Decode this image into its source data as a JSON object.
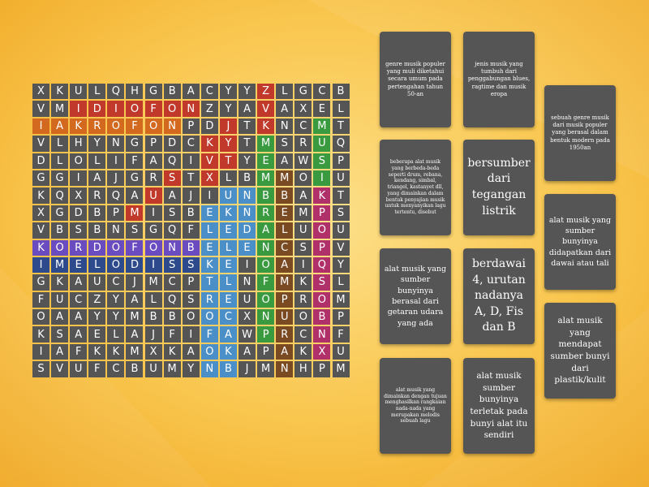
{
  "grid": {
    "rows": [
      "XKULQHGBACYYZLGCB",
      "VMIDIOFONZYAVAXEL",
      "IAKROFONPDJTKNCMT",
      "VLHYNGPDCKYTMSRUQ",
      "DLOLIFAQIVTYEAWSP",
      "GGIAJGRSTXLBMMOIU",
      "KQXRQAUAJIUNBBAKT",
      "XGDBPMISBEKNREMPS",
      "VBSBNSGQFLEDALUOU",
      "KORDOFONBELENCSPV",
      "IMELODISSKEIOAIQY",
      "GKAUCJMCPTLNFMKSL",
      "FUCZYALQSREUOPROM",
      "OAAYYMBBOOCXNUOBP",
      "KSAELAJFIFAWPRCNF",
      "IAFKKMXKAOKAPAKXU",
      "SVUFCBUMYNBJMNHPM"
    ],
    "found_colors": {
      "red": "#c0392b",
      "orange": "#d2691e",
      "purple": "#6a4bc0",
      "navy": "#2c4a8c",
      "lightblue": "#4b8fc8",
      "green": "#3a9a3f",
      "brown": "#7a4a22",
      "magenta": "#b0306a"
    }
  },
  "clues": [
    "genre musik populer yang muli diketahui secara umum pada pertengahan tahun 50-an",
    "jenis musik yang tumbuh dari penggabungan blues, ragtime dan musik eropa",
    "sebuah genre musik dari musik populer yang berasal dalam bentuk modern pada 1950an",
    "beberapa alat musik yang berbeda-beda seperti drum, rebana, kendang, simbal, triangel, kastanyet dll, yang dimainkan dalam bentuk penyajian musik untuk menyanyikan lagu tertentu, disebut",
    "bersumber dari tegangan listrik",
    "alat musik yang sumber bunyinya didapatkan dari dawai atau tali",
    "alat musik yang sumber bunyinya berasal dari getaran udara yang ada",
    "berdawai 4, urutan nadanya A, D, Fis dan B",
    "alat musik yang mendapat sumber bunyi dari plastik/kulit",
    "alat musik yang dimainkan dengan tujuan menghasilkan rangkaian nada-nada yang merupakan melodis sebuah lagu",
    "alat musik sumber bunyinya terletak pada bunyi alat itu sendiri"
  ]
}
